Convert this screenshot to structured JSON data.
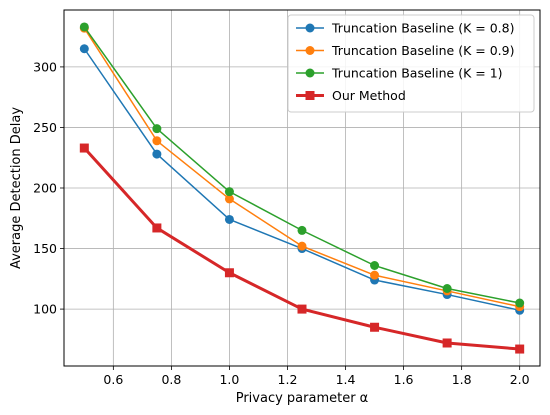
{
  "chart_data": {
    "type": "line",
    "title": "",
    "xlabel": "Privacy parameter α",
    "ylabel": "Average Detection Delay",
    "xlim": [
      0.43,
      2.07
    ],
    "ylim": [
      53,
      347
    ],
    "xticks": [
      0.6,
      0.8,
      1.0,
      1.2,
      1.4,
      1.6,
      1.8,
      2.0
    ],
    "xtick_labels": [
      "0.6",
      "0.8",
      "1.0",
      "1.2",
      "1.4",
      "1.6",
      "1.8",
      "2.0"
    ],
    "yticks": [
      100,
      150,
      200,
      250,
      300
    ],
    "ytick_labels": [
      "100",
      "150",
      "200",
      "250",
      "300"
    ],
    "grid": true,
    "legend_position": "top-right",
    "x": [
      0.5,
      0.75,
      1.0,
      1.25,
      1.5,
      1.75,
      2.0
    ],
    "series": [
      {
        "name": "Truncation Baseline (K = 0.8)",
        "color": "#1f77b4",
        "marker": "circle",
        "linewidth": 1.5,
        "values": [
          315,
          228,
          174,
          150,
          124,
          112,
          99
        ]
      },
      {
        "name": "Truncation Baseline (K = 0.9)",
        "color": "#ff7f0e",
        "marker": "circle",
        "linewidth": 1.5,
        "values": [
          332,
          239,
          191,
          152,
          128,
          115,
          102
        ]
      },
      {
        "name": "Truncation Baseline (K = 1)",
        "color": "#2ca02c",
        "marker": "circle",
        "linewidth": 1.5,
        "values": [
          333,
          249,
          197,
          165,
          136,
          117,
          105
        ]
      },
      {
        "name": "Our Method",
        "color": "#d62728",
        "marker": "square",
        "linewidth": 3,
        "values": [
          233,
          167,
          130,
          100,
          85,
          72,
          67
        ]
      }
    ]
  }
}
